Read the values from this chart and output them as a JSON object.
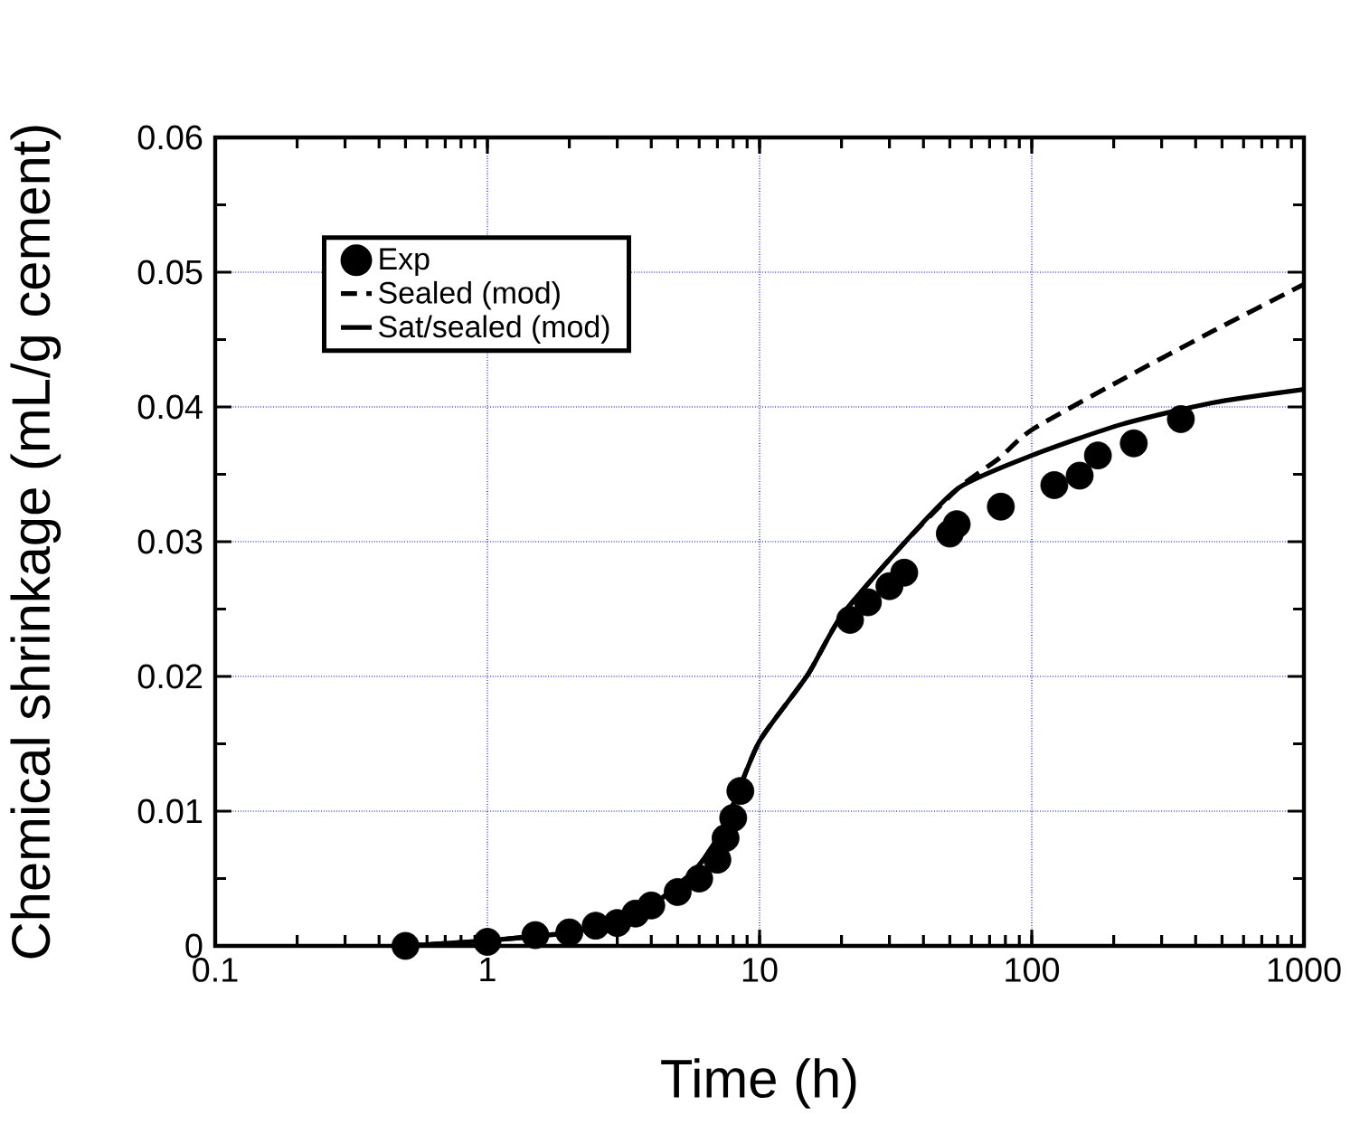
{
  "chart_data": {
    "type": "line",
    "xlabel": "Time (h)",
    "ylabel": "Chemical shrinkage (mL/g cement)",
    "log": "x",
    "xlim": [
      0.1,
      1000
    ],
    "xticks": [
      0.1,
      1,
      10,
      100,
      1000
    ],
    "ylim": [
      0,
      0.06
    ],
    "yticks": [
      0,
      0.01,
      0.02,
      0.03,
      0.04,
      0.05,
      0.06
    ],
    "grid": true,
    "legend": "top left",
    "series": [
      {
        "name": "Exp",
        "type": "scatter",
        "marker": "circle",
        "color": "#000000",
        "x": [
          0.5,
          1,
          1.5,
          2,
          2.5,
          3,
          3.5,
          4,
          5,
          6,
          7,
          7.5,
          8,
          8.5,
          21.5,
          25,
          30,
          34,
          50,
          53,
          77,
          121,
          150,
          175,
          237,
          353
        ],
        "values": [
          0,
          0.0003,
          0.0008,
          0.001,
          0.0015,
          0.0017,
          0.0024,
          0.003,
          0.004,
          0.005,
          0.0064,
          0.008,
          0.0095,
          0.0115,
          0.0242,
          0.0255,
          0.0267,
          0.0277,
          0.0306,
          0.0313,
          0.0326,
          0.0342,
          0.0349,
          0.0364,
          0.0373,
          0.0391
        ]
      },
      {
        "name": "Sealed (mod)",
        "type": "line",
        "line_style": "dashed",
        "color": "#000000",
        "x": [
          0.5,
          1,
          2,
          3,
          4,
          5,
          6,
          7,
          8,
          10,
          15,
          20,
          34,
          54,
          76,
          100,
          213,
          460,
          1000
        ],
        "values": [
          0,
          0.0004,
          0.001,
          0.002,
          0.003,
          0.0045,
          0.006,
          0.008,
          0.0105,
          0.0152,
          0.0201,
          0.0245,
          0.0299,
          0.034,
          0.0362,
          0.0383,
          0.042,
          0.0456,
          0.0491
        ]
      },
      {
        "name": "Sat/sealed (mod)",
        "type": "line",
        "line_style": "solid",
        "color": "#000000",
        "x": [
          0.5,
          1,
          2,
          3,
          4,
          5,
          6,
          7,
          8,
          10,
          15,
          20,
          34,
          54,
          100,
          213,
          460,
          1000
        ],
        "values": [
          0,
          0.0004,
          0.001,
          0.002,
          0.003,
          0.0045,
          0.006,
          0.008,
          0.0105,
          0.0152,
          0.0201,
          0.0245,
          0.0299,
          0.034,
          0.0364,
          0.0387,
          0.0403,
          0.0413
        ]
      }
    ]
  }
}
